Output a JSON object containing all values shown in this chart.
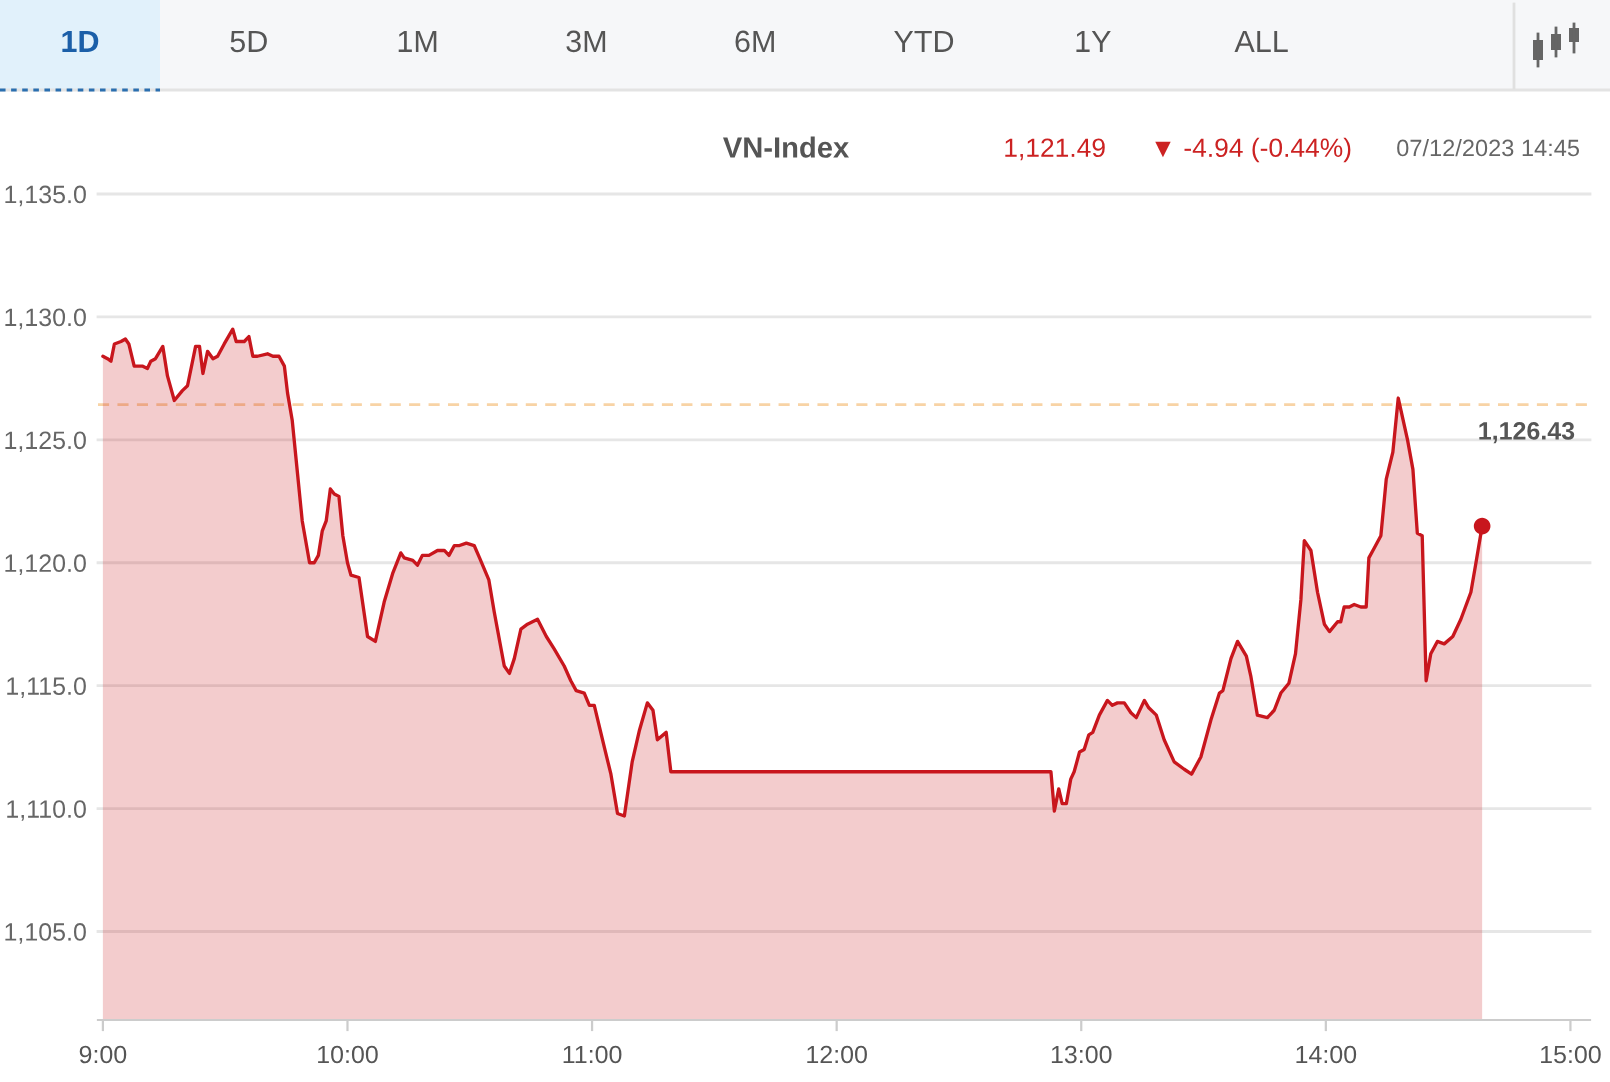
{
  "chart_data": {
    "type": "area",
    "title": "VN-Index",
    "annotations": [
      "1,121.49",
      "▼ -4.94 (-0.44%)",
      "07/12/2023 14:45",
      "1D",
      "5D",
      "1M",
      "3M",
      "6M",
      "YTD",
      "1Y",
      "ALL"
    ],
    "x": [
      9.0,
      9.019,
      9.033,
      9.047,
      9.074,
      9.092,
      9.106,
      9.128,
      9.161,
      9.182,
      9.196,
      9.215,
      9.245,
      9.264,
      9.292,
      9.325,
      9.346,
      9.379,
      9.395,
      9.409,
      9.428,
      9.45,
      9.469,
      9.496,
      9.531,
      9.545,
      9.578,
      9.597,
      9.613,
      9.632,
      9.673,
      9.695,
      9.72,
      9.742,
      9.755,
      9.774,
      9.796,
      9.815,
      9.845,
      9.864,
      9.881,
      9.897,
      9.913,
      9.93,
      9.946,
      9.965,
      9.981,
      10.0,
      10.014,
      10.047,
      10.082,
      10.114,
      10.15,
      10.186,
      10.218,
      10.232,
      10.267,
      10.286,
      10.306,
      10.333,
      10.368,
      10.396,
      10.415,
      10.437,
      10.458,
      10.486,
      10.518,
      10.54,
      10.578,
      10.6,
      10.641,
      10.662,
      10.682,
      10.709,
      10.736,
      10.777,
      10.813,
      10.845,
      10.886,
      10.913,
      10.935,
      10.968,
      10.989,
      11.009,
      11.05,
      11.077,
      11.104,
      11.132,
      11.164,
      11.194,
      11.226,
      11.249,
      11.267,
      11.303,
      11.322,
      11.336,
      12.876,
      12.89,
      12.908,
      12.922,
      12.939,
      12.957,
      12.971,
      12.993,
      13.012,
      13.031,
      13.047,
      13.074,
      13.107,
      13.127,
      13.148,
      13.176,
      13.203,
      13.225,
      13.258,
      13.276,
      13.307,
      13.339,
      13.38,
      13.421,
      13.451,
      13.489,
      13.53,
      13.565,
      13.579,
      13.612,
      13.639,
      13.675,
      13.693,
      13.72,
      13.761,
      13.789,
      13.816,
      13.849,
      13.876,
      13.898,
      13.912,
      13.939,
      13.966,
      13.994,
      14.015,
      14.048,
      14.061,
      14.075,
      14.096,
      14.116,
      14.143,
      14.165,
      14.176,
      14.198,
      14.225,
      14.247,
      14.274,
      14.296,
      14.334,
      14.356,
      14.374,
      14.394,
      14.41,
      14.429,
      14.456,
      14.484,
      14.519,
      14.552,
      14.593,
      14.612,
      14.639
    ],
    "series": [
      {
        "color": "#c8161d",
        "values": [
          1128.4,
          1128.3,
          1128.2,
          1128.9,
          1129.0,
          1129.1,
          1128.9,
          1128.0,
          1128.0,
          1127.9,
          1128.2,
          1128.3,
          1128.8,
          1127.6,
          1126.6,
          1127.0,
          1127.2,
          1128.8,
          1128.8,
          1127.7,
          1128.6,
          1128.3,
          1128.4,
          1128.9,
          1129.5,
          1129.0,
          1129.0,
          1129.2,
          1128.4,
          1128.4,
          1128.5,
          1128.4,
          1128.4,
          1128.0,
          1126.9,
          1125.8,
          1123.6,
          1121.7,
          1120.0,
          1120.0,
          1120.3,
          1121.3,
          1121.7,
          1123.0,
          1122.8,
          1122.7,
          1121.1,
          1120.0,
          1119.5,
          1119.4,
          1117.0,
          1116.8,
          1118.4,
          1119.6,
          1120.4,
          1120.2,
          1120.1,
          1119.9,
          1120.3,
          1120.3,
          1120.5,
          1120.5,
          1120.3,
          1120.7,
          1120.7,
          1120.8,
          1120.7,
          1120.2,
          1119.3,
          1118.0,
          1115.8,
          1115.5,
          1116.1,
          1117.3,
          1117.5,
          1117.7,
          1117.0,
          1116.5,
          1115.8,
          1115.2,
          1114.8,
          1114.7,
          1114.2,
          1114.2,
          1112.5,
          1111.4,
          1109.8,
          1109.7,
          1111.9,
          1113.2,
          1114.3,
          1114.0,
          1112.8,
          1113.1,
          1111.5,
          1111.5,
          1111.5,
          1109.9,
          1110.8,
          1110.2,
          1110.2,
          1111.2,
          1111.5,
          1112.3,
          1112.4,
          1113.0,
          1113.1,
          1113.8,
          1114.4,
          1114.2,
          1114.3,
          1114.3,
          1113.9,
          1113.7,
          1114.4,
          1114.1,
          1113.8,
          1112.8,
          1111.9,
          1111.6,
          1111.4,
          1112.1,
          1113.6,
          1114.7,
          1114.8,
          1116.1,
          1116.8,
          1116.2,
          1115.4,
          1113.8,
          1113.7,
          1114.0,
          1114.7,
          1115.1,
          1116.3,
          1118.5,
          1120.9,
          1120.5,
          1118.8,
          1117.5,
          1117.2,
          1117.6,
          1117.6,
          1118.2,
          1118.2,
          1118.3,
          1118.2,
          1118.2,
          1120.2,
          1120.6,
          1121.1,
          1123.4,
          1124.5,
          1126.7,
          1125.0,
          1123.8,
          1121.2,
          1121.1,
          1115.2,
          1116.3,
          1116.8,
          1116.7,
          1117.0,
          1117.7,
          1118.8,
          1119.9,
          1121.49
        ]
      },
      {
        "type": "scatter",
        "color": "#c8161d",
        "x": [
          14.639
        ],
        "values": [
          1121.49
        ]
      }
    ],
    "xlim": [
      8.98,
      15.08
    ],
    "ylim": [
      1101.4,
      1135.0
    ],
    "xticks": [
      {
        "value": 9,
        "label": "9:00"
      },
      {
        "value": 10,
        "label": "10:00"
      },
      {
        "value": 11,
        "label": "11:00"
      },
      {
        "value": 12,
        "label": "12:00"
      },
      {
        "value": 13,
        "label": "13:00"
      },
      {
        "value": 14,
        "label": "14:00"
      },
      {
        "value": 15,
        "label": "15:00"
      }
    ],
    "yticks": [
      {
        "value": 1105,
        "label": "1,105.0"
      },
      {
        "value": 1110,
        "label": "1,110.0"
      },
      {
        "value": 1115,
        "label": "1,115.0"
      },
      {
        "value": 1120,
        "label": "1,120.0"
      },
      {
        "value": 1125,
        "label": "1,125.0"
      },
      {
        "value": 1130,
        "label": "1,130.0"
      },
      {
        "value": 1135,
        "label": "1,135.0"
      }
    ],
    "ref_lines": [
      {
        "axis": "y",
        "value": 1126.43,
        "label": "1,126.43",
        "color": "#f8d3a5",
        "line_style": "dashed"
      }
    ],
    "grid": "y"
  }
}
